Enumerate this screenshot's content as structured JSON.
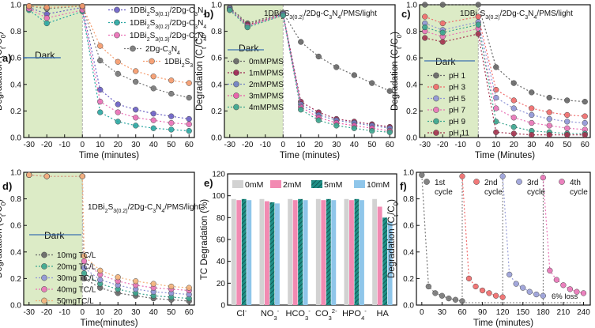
{
  "figure": {
    "description_label": "Six-panel degradation figure"
  },
  "colors": {
    "dark_zone": "#dcebc6",
    "dark_line": "#3b6fb0",
    "axis": "#111111",
    "sub_01": "#6a5fc4",
    "sub_02": "#2aa7a2",
    "sub_03": "#ea6fb6",
    "gcn": "#777777",
    "dbs": "#f59a6b"
  },
  "chart_data": [
    {
      "id": "a",
      "type": "line",
      "panel_label": "a)",
      "title": "",
      "xlabel": "Time (minutes)",
      "ylabel": "Degradation (Ct/C0)",
      "ylabel_parts": {
        "main": "Degradation (C",
        "sub1": "t",
        "mid": "/C",
        "sub2": "0",
        "end": ")"
      },
      "xlim": [
        -33,
        63
      ],
      "ylim": [
        0,
        1.0
      ],
      "xticks": [
        -30,
        -20,
        -10,
        0,
        10,
        20,
        30,
        40,
        50,
        60
      ],
      "yticks": [
        0.0,
        0.2,
        0.4,
        0.6,
        0.8,
        1.0
      ],
      "dark_region": [
        -33,
        0
      ],
      "dark_label": "Dark",
      "legend_position": "top-right",
      "x": [
        -30,
        -20,
        0,
        10,
        20,
        30,
        40,
        50,
        60
      ],
      "series": [
        {
          "name": "1DBi2S3(0.1)/2Dg-C3N4",
          "legend_parts": [
            "1DBi",
            "2",
            "S",
            "3(0.1)",
            "/2Dg-C",
            "3",
            "N",
            "4"
          ],
          "color": "#6a5fc4",
          "values": [
            0.98,
            0.93,
            0.98,
            0.36,
            0.25,
            0.21,
            0.18,
            0.16,
            0.14
          ]
        },
        {
          "name": "1DBi2S3(0.2)/2Dg-C3N4",
          "legend_parts": [
            "1DBi",
            "2",
            "S",
            "3(0.2)",
            "/2Dg-C",
            "3",
            "N",
            "4"
          ],
          "color": "#2aa7a2",
          "values": [
            0.96,
            0.86,
            0.95,
            0.19,
            0.12,
            0.09,
            0.07,
            0.06,
            0.05
          ]
        },
        {
          "name": "1DBi2S3(0.3)/2Dg-C3N4",
          "legend_parts": [
            "1DBi",
            "2",
            "S",
            "3(0.3)",
            "/2Dg-C",
            "3",
            "N",
            "4"
          ],
          "color": "#ea6fb6",
          "values": [
            0.97,
            0.9,
            0.96,
            0.27,
            0.19,
            0.15,
            0.13,
            0.11,
            0.1
          ]
        },
        {
          "name": "2Dg-C3N4",
          "legend_parts": [
            "2Dg-C",
            "3",
            "N",
            "4"
          ],
          "color": "#777777",
          "values": [
            0.99,
            0.97,
            0.99,
            0.58,
            0.48,
            0.42,
            0.37,
            0.33,
            0.3
          ]
        },
        {
          "name": "1DBi2S3",
          "legend_parts": [
            "1DBi",
            "2",
            "S",
            "3"
          ],
          "color": "#f59a6b",
          "values": [
            0.99,
            0.98,
            0.99,
            0.69,
            0.57,
            0.5,
            0.46,
            0.43,
            0.41
          ]
        }
      ]
    },
    {
      "id": "b",
      "type": "line",
      "panel_label": "b)",
      "title": "1DBi2S3(0.2)/2Dg-C3N4/PMS/light",
      "title_parts": [
        "1DBi",
        "2",
        "S",
        "3(0.2)",
        "/2Dg-C",
        "3",
        "N",
        "4",
        "/PMS/light"
      ],
      "xlabel": "Time (minutes)",
      "ylabel": "Degradation (Ct/C0)",
      "xlim": [
        -33,
        63
      ],
      "ylim": [
        0,
        1.0
      ],
      "xticks": [
        -30,
        -20,
        -10,
        0,
        10,
        20,
        30,
        40,
        50,
        60
      ],
      "yticks": [
        0.0,
        0.2,
        0.4,
        0.6,
        0.8,
        1.0
      ],
      "dark_region": [
        -33,
        0
      ],
      "dark_label": "Dark",
      "legend_position": "center-left",
      "x": [
        -30,
        -20,
        0,
        10,
        20,
        30,
        40,
        50,
        60
      ],
      "series": [
        {
          "name": "0mMPMS",
          "color": "#666666",
          "values": [
            0.98,
            0.86,
            0.94,
            0.72,
            0.61,
            0.53,
            0.47,
            0.41,
            0.35
          ]
        },
        {
          "name": "1mMPMS",
          "color": "#9c2452",
          "values": [
            0.97,
            0.85,
            0.93,
            0.27,
            0.19,
            0.14,
            0.12,
            0.1,
            0.08
          ]
        },
        {
          "name": "2mMPMS",
          "color": "#6f7fc2",
          "values": [
            0.97,
            0.84,
            0.93,
            0.25,
            0.17,
            0.13,
            0.11,
            0.09,
            0.07
          ]
        },
        {
          "name": "3mMPMS",
          "color": "#e85aa8",
          "values": [
            0.96,
            0.84,
            0.92,
            0.23,
            0.15,
            0.11,
            0.09,
            0.07,
            0.05
          ]
        },
        {
          "name": "4mMPMS",
          "color": "#3aa58e",
          "values": [
            0.96,
            0.83,
            0.92,
            0.21,
            0.13,
            0.09,
            0.07,
            0.05,
            0.04
          ]
        }
      ]
    },
    {
      "id": "c",
      "type": "line",
      "panel_label": "c)",
      "title": "1DBi2S3(0.2)/2Dg-C3N4/PMS/light",
      "title_parts": [
        "1DBi",
        "2",
        "S",
        "3(0.2)",
        "/2Dg-C",
        "3",
        "N",
        "4",
        "/PMS/light"
      ],
      "xlabel": "Time (Minutes)",
      "ylabel": "Degradation (Ct/C0)",
      "xlim": [
        -33,
        63
      ],
      "ylim": [
        0,
        1.0
      ],
      "xticks": [
        -30,
        -20,
        -10,
        0,
        10,
        20,
        30,
        40,
        50,
        60
      ],
      "yticks": [
        0.0,
        0.2,
        0.4,
        0.6,
        0.8,
        1.0
      ],
      "dark_region": [
        -33,
        0
      ],
      "dark_label": "Dark",
      "legend_position": "bottom-left",
      "x": [
        -30,
        -20,
        0,
        10,
        20,
        30,
        40,
        50,
        60
      ],
      "series": [
        {
          "name": "pH 1",
          "color": "#666666",
          "values": [
            1.0,
            1.0,
            1.0,
            0.53,
            0.41,
            0.34,
            0.3,
            0.28,
            0.27
          ]
        },
        {
          "name": "pH 3",
          "color": "#f06a6a",
          "values": [
            0.91,
            0.86,
            0.91,
            0.36,
            0.28,
            0.22,
            0.19,
            0.17,
            0.16
          ]
        },
        {
          "name": "pH 5",
          "color": "#8f95d6",
          "values": [
            0.86,
            0.81,
            0.87,
            0.3,
            0.22,
            0.17,
            0.14,
            0.12,
            0.11
          ]
        },
        {
          "name": "pH 7",
          "color": "#e974b7",
          "values": [
            0.8,
            0.76,
            0.82,
            0.22,
            0.15,
            0.11,
            0.09,
            0.07,
            0.06
          ]
        },
        {
          "name": "pH 9",
          "color": "#3aa58e",
          "values": [
            0.83,
            0.79,
            0.85,
            0.12,
            0.08,
            0.05,
            0.04,
            0.03,
            0.03
          ]
        },
        {
          "name": "pH 11",
          "color": "#a3324e",
          "values": [
            0.75,
            0.72,
            0.78,
            0.04,
            0.03,
            0.02,
            0.02,
            0.02,
            0.02
          ]
        }
      ]
    },
    {
      "id": "d",
      "type": "line",
      "panel_label": "d)",
      "title": "1DBi2S3(0.2)/2Dg-C3N4/PMS/light",
      "title_parts": [
        "1DBi",
        "2",
        "S",
        "3(0.2)",
        "/2Dg-C",
        "3",
        "N",
        "4",
        "/PMS/light"
      ],
      "xlabel": "Time(minutes)",
      "ylabel": "Degradation (Ct/C0)",
      "xlim": [
        -33,
        63
      ],
      "ylim": [
        0,
        1.0
      ],
      "xticks": [
        -30,
        -20,
        -10,
        0,
        10,
        20,
        30,
        40,
        50,
        60
      ],
      "yticks": [
        0.0,
        0.2,
        0.4,
        0.6,
        0.8,
        1.0
      ],
      "dark_region": [
        -33,
        0
      ],
      "dark_label": "Dark",
      "legend_position": "bottom-left",
      "x": [
        -30,
        -20,
        0,
        1,
        10,
        20,
        30,
        40,
        50,
        60
      ],
      "series": [
        {
          "name": "10mg TC/L",
          "color": "#666666",
          "values": [
            0.98,
            0.97,
            0.97,
            0.2,
            0.13,
            0.09,
            0.07,
            0.05,
            0.04,
            0.03
          ]
        },
        {
          "name": "20mg TC/L",
          "color": "#3aa58e",
          "values": [
            0.98,
            0.97,
            0.97,
            0.24,
            0.16,
            0.12,
            0.09,
            0.07,
            0.06,
            0.05
          ]
        },
        {
          "name": "30mg TC/L",
          "color": "#8f95d6",
          "values": [
            0.98,
            0.97,
            0.97,
            0.28,
            0.19,
            0.15,
            0.12,
            0.1,
            0.09,
            0.08
          ]
        },
        {
          "name": "40mg TC/L",
          "color": "#e974b7",
          "values": [
            0.98,
            0.97,
            0.97,
            0.33,
            0.23,
            0.18,
            0.15,
            0.13,
            0.12,
            0.11
          ]
        },
        {
          "name": "50mgTC/L",
          "color": "#f3b37a",
          "values": [
            0.98,
            0.97,
            0.97,
            0.37,
            0.26,
            0.21,
            0.18,
            0.16,
            0.14,
            0.13
          ]
        }
      ]
    },
    {
      "id": "e",
      "type": "bar",
      "panel_label": "e)",
      "title": "",
      "xlabel": "",
      "ylabel": "TC Degradation (%)",
      "ylim": [
        0,
        120
      ],
      "yticks": [
        0,
        20,
        40,
        60,
        80,
        100,
        120
      ],
      "legend_position": "top",
      "categories": [
        "Cl-",
        "NO3-",
        "HCO3-",
        "CO32-",
        "HPO4-",
        "HA"
      ],
      "category_parts": [
        [
          "Cl",
          "-",
          ""
        ],
        [
          "NO",
          "3",
          "-"
        ],
        [
          "HCO",
          "3",
          "-"
        ],
        [
          "CO",
          "3",
          "2-"
        ],
        [
          "HPO",
          "4",
          "-"
        ],
        [
          "HA",
          "",
          ""
        ]
      ],
      "series": [
        {
          "name": "0mM",
          "color": "#d2d2d2",
          "pattern": "none",
          "values": [
            97,
            97,
            97,
            97,
            97,
            97
          ]
        },
        {
          "name": "2mM",
          "color": "#f28ab2",
          "pattern": "none",
          "values": [
            96,
            95,
            96,
            96,
            96,
            90
          ]
        },
        {
          "name": "5mM",
          "color": "#1f8f86",
          "pattern": "hatch",
          "values": [
            97,
            94,
            97,
            97,
            97,
            80
          ]
        },
        {
          "name": "10mM",
          "color": "#8fc6ea",
          "pattern": "none",
          "values": [
            96,
            93,
            96,
            96,
            96,
            76
          ]
        }
      ]
    },
    {
      "id": "f",
      "type": "line",
      "panel_label": "f)",
      "title": "",
      "xlabel": "Time (minutes)",
      "ylabel": "Degradation (Ct/C0)",
      "xlim": [
        -8,
        250
      ],
      "ylim": [
        0,
        1.0
      ],
      "xticks": [
        0,
        30,
        60,
        90,
        120,
        150,
        180,
        210,
        240
      ],
      "yticks": [
        0.0,
        0.2,
        0.4,
        0.6,
        0.8,
        1.0
      ],
      "cycle_dividers": [
        60,
        120,
        180
      ],
      "loss_label": "6% loss",
      "cycles": [
        {
          "name": "1st cycle",
          "line1": "1st",
          "line2": "cycle",
          "color": "#777777",
          "x": [
            0,
            10,
            20,
            30,
            40,
            50,
            60
          ],
          "values": [
            0.98,
            0.14,
            0.09,
            0.07,
            0.05,
            0.04,
            0.03
          ]
        },
        {
          "name": "2nd cycle",
          "line1": "2nd",
          "line2": "cycle",
          "color": "#f06a6a",
          "x": [
            60,
            70,
            80,
            90,
            100,
            110,
            120
          ],
          "values": [
            0.97,
            0.2,
            0.14,
            0.11,
            0.09,
            0.07,
            0.06
          ]
        },
        {
          "name": "3rd cycle",
          "line1": "3rd",
          "line2": "cycle",
          "color": "#9aa0d8",
          "x": [
            120,
            130,
            140,
            150,
            160,
            170,
            180
          ],
          "values": [
            0.97,
            0.23,
            0.16,
            0.13,
            0.1,
            0.08,
            0.07
          ]
        },
        {
          "name": "4th cycle",
          "line1": "4th",
          "line2": "cycle",
          "color": "#e974b7",
          "x": [
            180,
            190,
            200,
            210,
            220,
            230,
            240
          ],
          "values": [
            0.96,
            0.26,
            0.19,
            0.15,
            0.12,
            0.1,
            0.09
          ]
        }
      ]
    }
  ]
}
